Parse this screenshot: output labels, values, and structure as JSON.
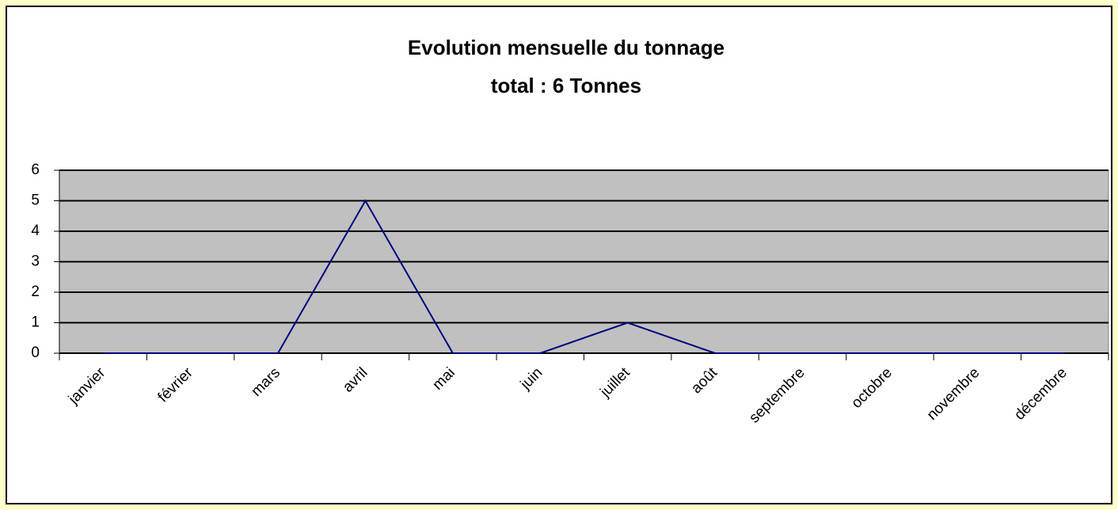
{
  "chart_data": {
    "type": "line",
    "title": "Evolution mensuelle du tonnage",
    "subtitle": "total : 6 Tonnes",
    "categories": [
      "janvier",
      "février",
      "mars",
      "avril",
      "mai",
      "juin",
      "juillet",
      "août",
      "septembre",
      "octobre",
      "novembre",
      "décembre"
    ],
    "values": [
      0,
      0,
      0,
      5,
      0,
      0,
      1,
      0,
      0,
      0,
      0,
      0
    ],
    "color": "#000080",
    "ylim": [
      0,
      6
    ],
    "yticks": [
      0,
      1,
      2,
      3,
      4,
      5,
      6
    ],
    "grid": true
  }
}
